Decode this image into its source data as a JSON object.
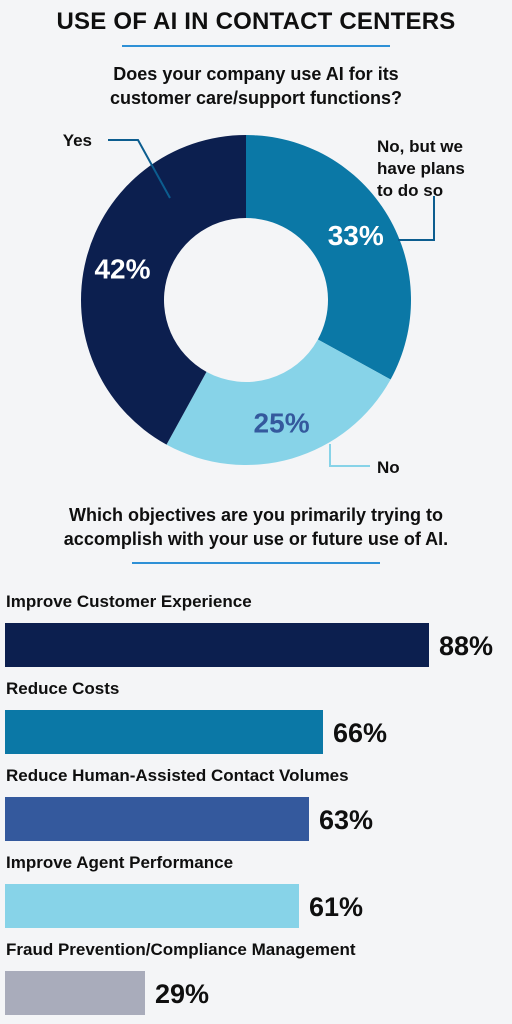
{
  "title": "USE OF AI IN CONTACT CENTERS",
  "question1": {
    "line1": "Does your company use AI for its",
    "line2": "customer care/support functions?"
  },
  "question2": {
    "line1": "Which objectives are you primarily trying to",
    "line2": "accomplish with your use or future use of AI."
  },
  "colors": {
    "navy": "#0c1f4f",
    "teal": "#0b78a6",
    "light_blue": "#87d3e8",
    "medium_blue": "#34599d",
    "gray": "#a9acbb",
    "accent_rule": "#2e90d6"
  },
  "chart_data": [
    {
      "type": "pie",
      "subtype": "donut",
      "title": "Does your company use AI for its customer care/support functions?",
      "slices": [
        {
          "label": "No, but we have plans to do so",
          "label_lines": [
            "No, but we",
            "have plans",
            "to do so"
          ],
          "value": 33,
          "value_label": "33%",
          "color": "#0b78a6",
          "value_text_color": "#ffffff"
        },
        {
          "label": "No",
          "label_lines": [
            "No"
          ],
          "value": 25,
          "value_label": "25%",
          "color": "#87d3e8",
          "value_text_color": "#34599d"
        },
        {
          "label": "Yes",
          "label_lines": [
            "Yes"
          ],
          "value": 42,
          "value_label": "42%",
          "color": "#0c1f4f",
          "value_text_color": "#ffffff"
        }
      ]
    },
    {
      "type": "bar",
      "orientation": "horizontal",
      "title": "Which objectives are you primarily trying to accomplish with your use or future use of AI.",
      "xlim": [
        0,
        100
      ],
      "categories": [
        "Improve Customer Experience",
        "Reduce Costs",
        "Reduce Human-Assisted Contact Volumes",
        "Improve Agent Performance",
        "Fraud Prevention/Compliance Management"
      ],
      "values": [
        88,
        66,
        63,
        61,
        29
      ],
      "value_labels": [
        "88%",
        "66%",
        "63%",
        "61%",
        "29%"
      ],
      "colors": [
        "#0c1f4f",
        "#0b78a6",
        "#34599d",
        "#87d3e8",
        "#a9acbb"
      ]
    }
  ]
}
